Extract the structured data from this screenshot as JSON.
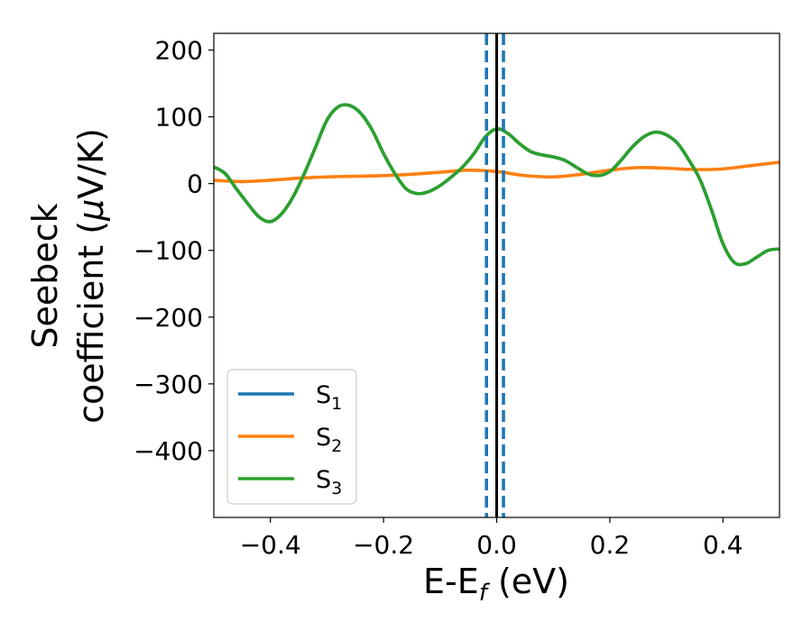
{
  "chart_data": {
    "type": "line",
    "xlabel": {
      "main": "E-E",
      "sub": "f",
      "unit": " (eV)"
    },
    "ylabel": {
      "line1": "Seebeck",
      "line2": "coefficient  (",
      "mu": "μ",
      "unit": "V/K)"
    },
    "xlim": [
      -0.5,
      0.5
    ],
    "ylim": [
      -500,
      225
    ],
    "xticks": [
      -0.4,
      -0.2,
      0.0,
      0.2,
      0.4
    ],
    "xtick_labels": [
      "−0.4",
      "−0.2",
      "0.0",
      "0.2",
      "0.4"
    ],
    "yticks": [
      200,
      100,
      0,
      -100,
      -200,
      -300,
      -400
    ],
    "ytick_labels": [
      "200",
      "100",
      "0",
      "−100",
      "−200",
      "−300",
      "−400"
    ],
    "grid": false,
    "legend_position": "lower-left",
    "vertical_lines": [
      {
        "x": 0.0,
        "style": "solid",
        "color": "#000000"
      },
      {
        "x": -0.018,
        "style": "dashed",
        "color": "#1f77b4"
      },
      {
        "x": 0.012,
        "style": "dashed",
        "color": "#1f77b4"
      }
    ],
    "series": [
      {
        "name": "S",
        "sub": "1",
        "color": "#1f77b4",
        "x": [
          -0.5,
          -0.48,
          -0.46,
          -0.44,
          -0.42,
          -0.4,
          -0.38,
          -0.36,
          -0.34,
          -0.32,
          -0.3,
          -0.28,
          -0.26,
          -0.24,
          -0.22,
          -0.2,
          -0.18,
          -0.16,
          -0.14,
          -0.12,
          -0.1,
          -0.08,
          -0.06,
          -0.04,
          -0.02,
          0.0,
          0.02,
          0.04,
          0.06,
          0.08,
          0.1,
          0.12,
          0.14,
          0.16,
          0.18,
          0.2,
          0.22,
          0.24,
          0.26,
          0.28,
          0.3,
          0.32,
          0.34,
          0.36,
          0.38,
          0.4,
          0.42,
          0.44,
          0.46,
          0.48,
          0.5
        ],
        "y": [
          25,
          15,
          -8,
          -30,
          -50,
          -57,
          -45,
          -20,
          15,
          55,
          95,
          115,
          117,
          105,
          80,
          45,
          15,
          -8,
          -15,
          -12,
          -3,
          10,
          25,
          45,
          70,
          82,
          75,
          60,
          48,
          43,
          40,
          35,
          25,
          15,
          12,
          18,
          35,
          55,
          70,
          77,
          73,
          60,
          35,
          5,
          -40,
          -90,
          -118,
          -120,
          -110,
          -100,
          -98
        ]
      },
      {
        "name": "S",
        "sub": "2",
        "color": "#ff7f0e",
        "x": [
          -0.5,
          -0.45,
          -0.4,
          -0.35,
          -0.3,
          -0.25,
          -0.2,
          -0.15,
          -0.1,
          -0.05,
          0.0,
          0.05,
          0.1,
          0.15,
          0.2,
          0.25,
          0.3,
          0.35,
          0.4,
          0.45,
          0.5
        ],
        "y": [
          5,
          3,
          5,
          8,
          10,
          11,
          12,
          14,
          17,
          20,
          18,
          12,
          10,
          14,
          20,
          24,
          23,
          21,
          22,
          27,
          32
        ]
      },
      {
        "name": "S",
        "sub": "3",
        "color": "#2ca02c",
        "x": [
          -0.5,
          -0.48,
          -0.46,
          -0.44,
          -0.42,
          -0.4,
          -0.38,
          -0.36,
          -0.34,
          -0.32,
          -0.3,
          -0.28,
          -0.26,
          -0.24,
          -0.22,
          -0.2,
          -0.18,
          -0.16,
          -0.14,
          -0.12,
          -0.1,
          -0.08,
          -0.06,
          -0.04,
          -0.02,
          0.0,
          0.02,
          0.04,
          0.06,
          0.08,
          0.1,
          0.12,
          0.14,
          0.16,
          0.18,
          0.2,
          0.22,
          0.24,
          0.26,
          0.28,
          0.3,
          0.32,
          0.34,
          0.36,
          0.38,
          0.4,
          0.42,
          0.44,
          0.46,
          0.48,
          0.5
        ],
        "y": [
          25,
          15,
          -8,
          -30,
          -50,
          -57,
          -45,
          -20,
          15,
          55,
          95,
          115,
          117,
          105,
          80,
          45,
          15,
          -8,
          -15,
          -12,
          -3,
          10,
          25,
          45,
          70,
          82,
          75,
          60,
          48,
          43,
          40,
          35,
          25,
          15,
          12,
          18,
          35,
          55,
          70,
          77,
          73,
          60,
          35,
          5,
          -40,
          -90,
          -118,
          -120,
          -110,
          -100,
          -98
        ]
      }
    ]
  }
}
